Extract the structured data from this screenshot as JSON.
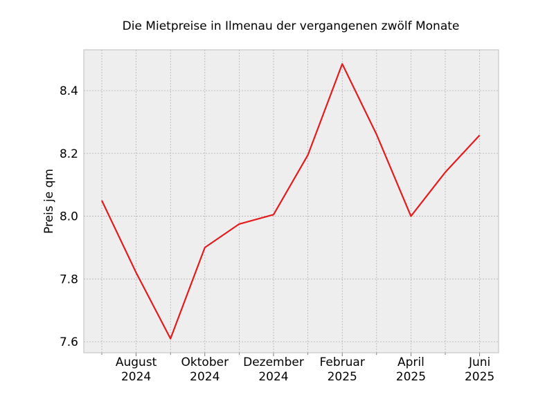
{
  "chart_data": {
    "type": "line",
    "title": "Die Mietpreise in Ilmenau der vergangenen zwölf Monate",
    "xlabel": "",
    "ylabel": "Preis je qm",
    "x": [
      "2024-07",
      "2024-08",
      "2024-09",
      "2024-10",
      "2024-11",
      "2024-12",
      "2025-01",
      "2025-02",
      "2025-03",
      "2025-04",
      "2025-05",
      "2025-06"
    ],
    "series": [
      {
        "values": [
          8.05,
          7.82,
          7.61,
          7.9,
          7.975,
          8.005,
          8.195,
          8.485,
          8.26,
          8.0,
          8.14,
          8.258
        ]
      }
    ],
    "x_tick_labels": [
      {
        "month": "August",
        "year": "2024"
      },
      {
        "month": "Oktober",
        "year": "2024"
      },
      {
        "month": "Dezember",
        "year": "2024"
      },
      {
        "month": "Februar",
        "year": "2025"
      },
      {
        "month": "April",
        "year": "2025"
      },
      {
        "month": "Juni",
        "year": "2025"
      }
    ],
    "y_ticks": [
      "7.6",
      "7.8",
      "8.0",
      "8.2",
      "8.4"
    ],
    "ylim": [
      7.565,
      8.53
    ],
    "grid": true,
    "colors": {
      "line": "#e41a1c",
      "plot_background": "#eeeeee",
      "grid": "#b0b0b0",
      "frame": "#bcbcbc"
    }
  }
}
